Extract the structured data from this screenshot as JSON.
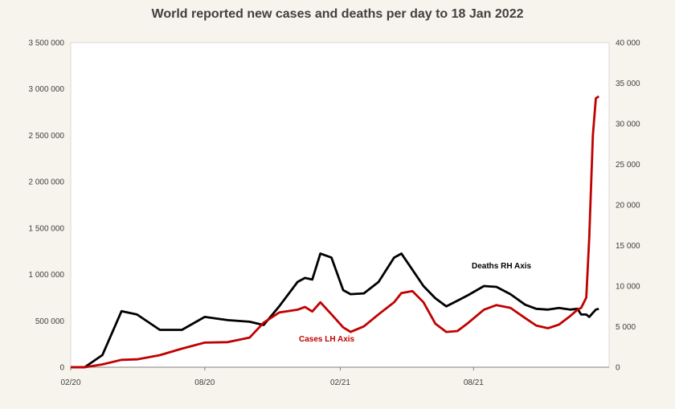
{
  "chart_data": {
    "type": "line",
    "title": "World reported new cases and deaths per day to 18 Jan 2022",
    "xlabel": "",
    "ylabel": "",
    "y2label": "",
    "x_ticks": [
      "02/20",
      "08/20",
      "02/21",
      "08/21"
    ],
    "y_ticks": [
      "0",
      "500 000",
      "1 000 000",
      "1 500 000",
      "2 000 000",
      "2 500 000",
      "3 000 000",
      "3 500 000"
    ],
    "y2_ticks": [
      "0",
      "5 000",
      "10 000",
      "15 000",
      "20 000",
      "25 000",
      "30 000",
      "35 000",
      "40 000"
    ],
    "ylim": [
      0,
      3500000
    ],
    "y2lim": [
      0,
      40000
    ],
    "x": [
      "2020-02-01",
      "2020-02-20",
      "2020-03-15",
      "2020-04-10",
      "2020-05-01",
      "2020-06-01",
      "2020-07-01",
      "2020-08-01",
      "2020-09-01",
      "2020-10-01",
      "2020-10-20",
      "2020-11-10",
      "2020-12-05",
      "2020-12-15",
      "2020-12-25",
      "2021-01-05",
      "2021-01-20",
      "2021-02-05",
      "2021-02-15",
      "2021-03-05",
      "2021-03-25",
      "2021-04-15",
      "2021-04-25",
      "2021-05-10",
      "2021-05-25",
      "2021-06-10",
      "2021-06-25",
      "2021-07-10",
      "2021-07-25",
      "2021-08-15",
      "2021-09-01",
      "2021-09-20",
      "2021-10-10",
      "2021-10-25",
      "2021-11-10",
      "2021-11-25",
      "2021-12-10",
      "2021-12-20",
      "2021-12-25",
      "2022-01-01",
      "2022-01-05",
      "2022-01-10",
      "2022-01-14",
      "2022-01-18"
    ],
    "series": [
      {
        "name": "Cases LH Axis",
        "axis": "left",
        "color": "#c00000",
        "values": [
          0,
          0,
          30000,
          80000,
          85000,
          130000,
          200000,
          265000,
          270000,
          320000,
          480000,
          590000,
          620000,
          650000,
          600000,
          700000,
          570000,
          430000,
          380000,
          440000,
          570000,
          700000,
          800000,
          820000,
          700000,
          470000,
          380000,
          390000,
          480000,
          620000,
          670000,
          640000,
          530000,
          450000,
          420000,
          460000,
          550000,
          620000,
          640000,
          750000,
          1400000,
          2500000,
          2900000,
          2920000
        ]
      },
      {
        "name": "Deaths RH Axis",
        "axis": "right",
        "color": "#000000",
        "values": [
          0,
          0,
          1500,
          6900,
          6500,
          4600,
          4600,
          6200,
          5800,
          5600,
          5200,
          7500,
          10500,
          11000,
          10800,
          14000,
          13500,
          9500,
          9000,
          9100,
          10500,
          13500,
          14000,
          12000,
          10000,
          8500,
          7500,
          8200,
          8900,
          10000,
          9900,
          9000,
          7700,
          7200,
          7100,
          7300,
          7100,
          7200,
          6500,
          6500,
          6200,
          6700,
          7100,
          7200
        ]
      }
    ],
    "grid": false,
    "legend": "inline annotations"
  }
}
